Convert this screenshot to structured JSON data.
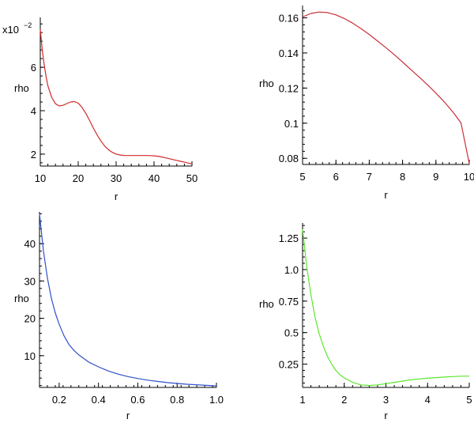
{
  "chart_data": [
    {
      "type": "line",
      "xlabel": "r",
      "ylabel": "rho",
      "color": "#d42a2a",
      "xlim": [
        10,
        50
      ],
      "ylim": [
        1.45,
        8.3
      ],
      "xticks": [
        10,
        20,
        30,
        40,
        50
      ],
      "yticks": [
        2,
        4,
        6
      ],
      "ytick_labels": [
        "2",
        "4",
        "6"
      ],
      "multiplier_label": "x10",
      "multiplier_exponent": "−2",
      "series": [
        {
          "name": "rho",
          "x": [
            10,
            10.5,
            11,
            11.5,
            12,
            13,
            14,
            15,
            16,
            17,
            18,
            19,
            20,
            21,
            22,
            23,
            24,
            25,
            26,
            27,
            28,
            29,
            30,
            31,
            32,
            33,
            34,
            35,
            36,
            37,
            38,
            39,
            40,
            41,
            42,
            43,
            44,
            45,
            46,
            47,
            48,
            49,
            50
          ],
          "y": [
            7.75,
            6.85,
            6.15,
            5.6,
            5.15,
            4.62,
            4.32,
            4.22,
            4.25,
            4.33,
            4.4,
            4.42,
            4.35,
            4.15,
            3.88,
            3.55,
            3.2,
            2.88,
            2.6,
            2.37,
            2.2,
            2.08,
            2.0,
            1.96,
            1.94,
            1.935,
            1.935,
            1.935,
            1.935,
            1.935,
            1.935,
            1.93,
            1.92,
            1.9,
            1.87,
            1.83,
            1.79,
            1.75,
            1.71,
            1.67,
            1.63,
            1.59,
            1.55
          ]
        }
      ]
    },
    {
      "type": "line",
      "xlabel": "r",
      "ylabel": "rho",
      "color": "#c8303a",
      "xlim": [
        5,
        10
      ],
      "ylim": [
        0.0765,
        0.167
      ],
      "xticks": [
        5,
        6,
        7,
        8,
        9,
        10
      ],
      "yticks": [
        0.08,
        0.1,
        0.12,
        0.14,
        0.16
      ],
      "ytick_labels": [
        "0.08",
        "0.1",
        "0.12",
        "0.14",
        "0.16"
      ],
      "series": [
        {
          "name": "rho",
          "x": [
            5,
            5.25,
            5.5,
            5.75,
            6,
            6.25,
            6.5,
            6.75,
            7,
            7.25,
            7.5,
            7.75,
            8,
            8.25,
            8.5,
            8.75,
            9,
            9.25,
            9.5,
            9.75,
            10
          ],
          "y": [
            0.1605,
            0.1625,
            0.1633,
            0.163,
            0.1617,
            0.1596,
            0.157,
            0.1539,
            0.1505,
            0.1468,
            0.143,
            0.139,
            0.1348,
            0.1305,
            0.1262,
            0.1218,
            0.1171,
            0.1121,
            0.1066,
            0.1002,
            0.077
          ]
        }
      ]
    },
    {
      "type": "line",
      "xlabel": "r",
      "ylabel": "rho",
      "color": "#3050c8",
      "xlim": [
        0.1,
        1.0
      ],
      "ylim": [
        1.5,
        48.5
      ],
      "xticks": [
        0.2,
        0.4,
        0.6,
        0.8,
        1.0
      ],
      "yticks": [
        10,
        20,
        30,
        40
      ],
      "ytick_labels": [
        "10",
        "20",
        "30",
        "40"
      ],
      "series": [
        {
          "name": "rho",
          "x": [
            0.1,
            0.12,
            0.14,
            0.16,
            0.18,
            0.2,
            0.225,
            0.25,
            0.275,
            0.3,
            0.35,
            0.4,
            0.45,
            0.5,
            0.55,
            0.6,
            0.65,
            0.7,
            0.75,
            0.8,
            0.85,
            0.9,
            0.95,
            1.0
          ],
          "y": [
            48.0,
            38.0,
            30.8,
            25.5,
            21.5,
            18.4,
            15.3,
            13.0,
            11.4,
            10.2,
            8.3,
            7.0,
            5.9,
            5.05,
            4.4,
            3.9,
            3.45,
            3.1,
            2.8,
            2.55,
            2.35,
            2.2,
            2.05,
            1.9
          ]
        }
      ]
    },
    {
      "type": "line",
      "xlabel": "r",
      "ylabel": "rho",
      "color": "#5ce62e",
      "xlim": [
        1,
        5
      ],
      "ylim": [
        0.065,
        1.37
      ],
      "xticks": [
        1,
        2,
        3,
        4,
        5
      ],
      "yticks": [
        0.25,
        0.5,
        0.75,
        1.0,
        1.25
      ],
      "ytick_labels": [
        "0.25",
        "0.5",
        "0.75",
        "1.0",
        "1.25"
      ],
      "series": [
        {
          "name": "rho",
          "x": [
            1,
            1.1,
            1.2,
            1.3,
            1.4,
            1.5,
            1.6,
            1.7,
            1.8,
            1.9,
            2.0,
            2.2,
            2.4,
            2.6,
            2.8,
            3.0,
            3.2,
            3.4,
            3.6,
            3.8,
            4.0,
            4.2,
            4.4,
            4.6,
            4.8,
            5.0
          ],
          "y": [
            1.32,
            1.02,
            0.8,
            0.62,
            0.49,
            0.39,
            0.31,
            0.25,
            0.2,
            0.165,
            0.14,
            0.105,
            0.085,
            0.08,
            0.085,
            0.095,
            0.105,
            0.115,
            0.125,
            0.132,
            0.138,
            0.143,
            0.147,
            0.151,
            0.154,
            0.155
          ]
        }
      ]
    }
  ]
}
